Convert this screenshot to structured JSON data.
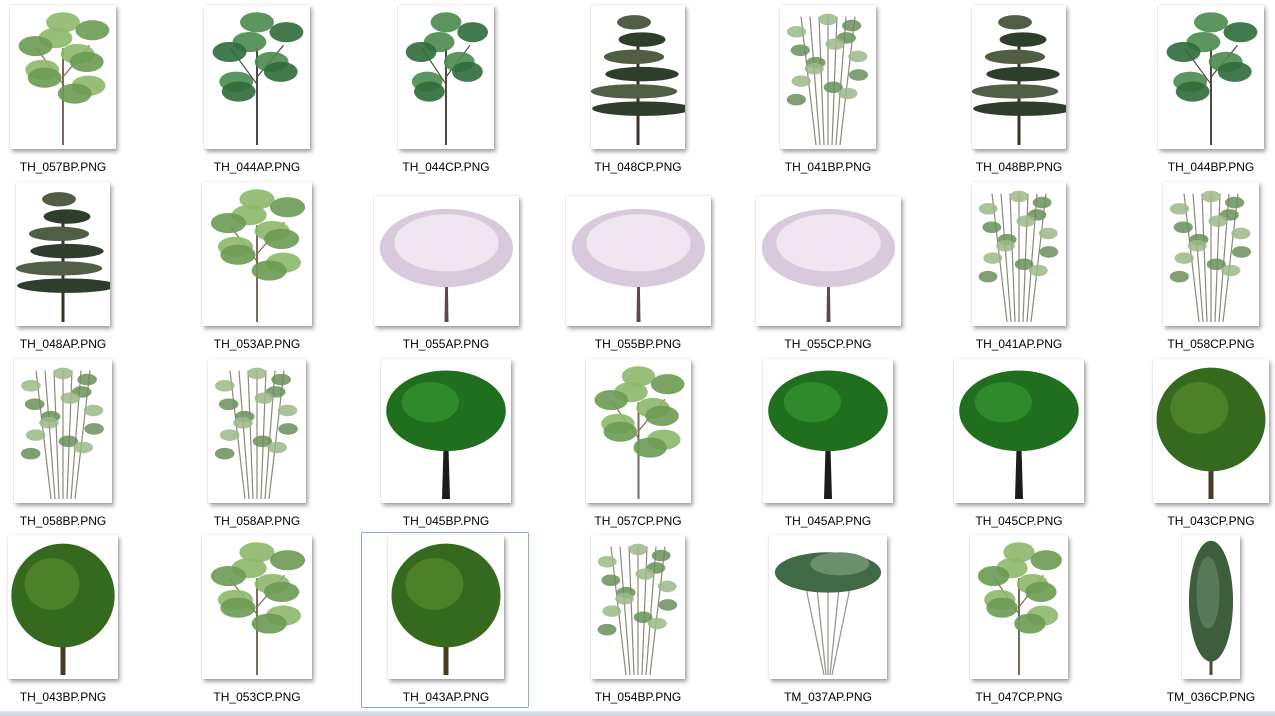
{
  "window": {
    "view": "Large icons"
  },
  "colors": {
    "selection_border": "#84acdd",
    "label_text": "#000000"
  },
  "files": [
    {
      "name": "TH_057BP.PNG",
      "shape": "light"
    },
    {
      "name": "TH_044AP.PNG",
      "shape": "mid"
    },
    {
      "name": "TH_044CP.PNG",
      "shape": "mid"
    },
    {
      "name": "TH_048CP.PNG",
      "shape": "pine"
    },
    {
      "name": "TH_041BP.PNG",
      "shape": "bamboo"
    },
    {
      "name": "TH_048BP.PNG",
      "shape": "pine"
    },
    {
      "name": "TH_044BP.PNG",
      "shape": "mid"
    },
    {
      "name": "TH_048AP.PNG",
      "shape": "pine"
    },
    {
      "name": "TH_053AP.PNG",
      "shape": "light"
    },
    {
      "name": "TH_055AP.PNG",
      "shape": "blossom"
    },
    {
      "name": "TH_055BP.PNG",
      "shape": "blossom"
    },
    {
      "name": "TH_055CP.PNG",
      "shape": "blossom"
    },
    {
      "name": "TH_041AP.PNG",
      "shape": "bamboo"
    },
    {
      "name": "TH_058CP.PNG",
      "shape": "bamboo"
    },
    {
      "name": "TH_058BP.PNG",
      "shape": "bamboo"
    },
    {
      "name": "TH_058AP.PNG",
      "shape": "bamboo"
    },
    {
      "name": "TH_045BP.PNG",
      "shape": "dark"
    },
    {
      "name": "TH_057CP.PNG",
      "shape": "light"
    },
    {
      "name": "TH_045AP.PNG",
      "shape": "dark"
    },
    {
      "name": "TH_045CP.PNG",
      "shape": "dark"
    },
    {
      "name": "TH_043CP.PNG",
      "shape": "round"
    },
    {
      "name": "TH_043BP.PNG",
      "shape": "round"
    },
    {
      "name": "TH_053CP.PNG",
      "shape": "light"
    },
    {
      "name": "TH_043AP.PNG",
      "shape": "round",
      "selected": true
    },
    {
      "name": "TH_054BP.PNG",
      "shape": "bamboo"
    },
    {
      "name": "TM_037AP.PNG",
      "shape": "umbrella"
    },
    {
      "name": "TH_047CP.PNG",
      "shape": "light"
    },
    {
      "name": "TM_036CP.PNG",
      "shape": "cypress"
    }
  ]
}
